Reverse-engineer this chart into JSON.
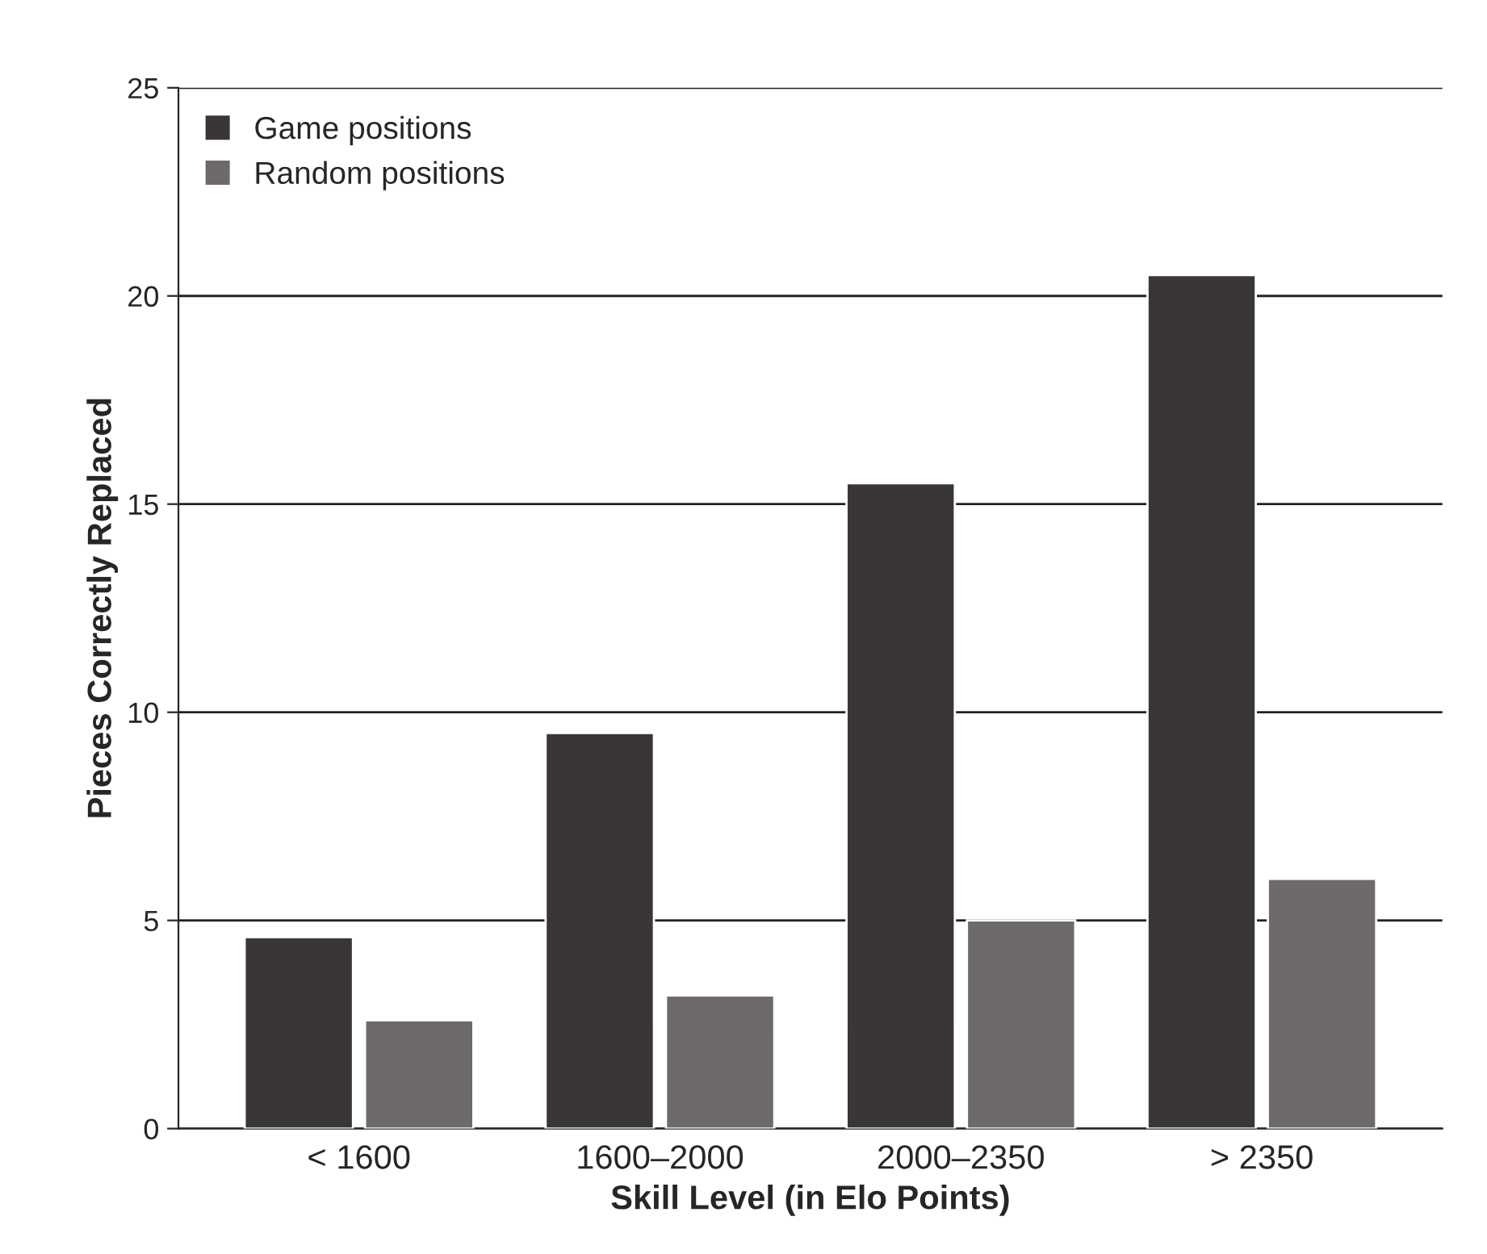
{
  "chart_data": {
    "type": "bar",
    "xlabel": "Skill Level (in Elo Points)",
    "ylabel": "Pieces Correctly Replaced",
    "categories": [
      "< 1600",
      "1600–2000",
      "2000–2350",
      "> 2350"
    ],
    "series": [
      {
        "name": "Game positions",
        "color": "#3a3536",
        "values": [
          4.6,
          9.5,
          15.5,
          20.5
        ]
      },
      {
        "name": "Random positions",
        "color": "#6e6a69",
        "values": [
          2.6,
          3.2,
          5,
          6
        ]
      }
    ],
    "ylim": [
      0,
      25
    ],
    "yticks": [
      0,
      5,
      10,
      15,
      20,
      25
    ],
    "grid": "y",
    "legend": "top left"
  }
}
